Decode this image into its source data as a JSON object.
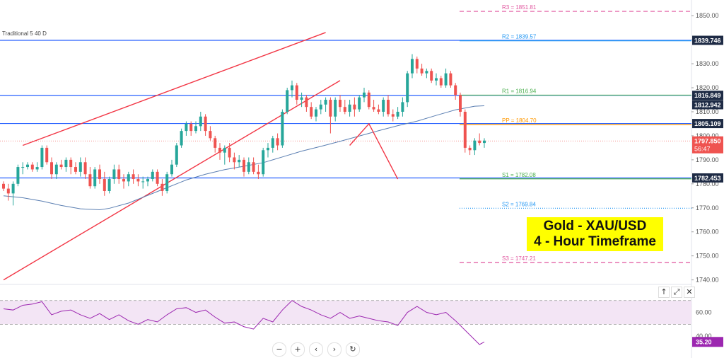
{
  "indicator_label": "Traditional 5 40 D",
  "title_box": {
    "line1": "Gold - XAU/USD",
    "line2": "4 - Hour Timeframe"
  },
  "colors": {
    "up": "#26a69a",
    "down": "#ef5350",
    "hline": "#2962ff",
    "channel": "#f23645",
    "ma": "#5b7fb2",
    "rsi_line": "#9c27b0",
    "rsi_fill": "#f3e5f5",
    "pivot_r": "#e0559e",
    "pivot_r2": "#2196f3",
    "pivot_r1": "#4caf50",
    "pivot_pp": "#ff9800",
    "pivot_s1": "#4caf50",
    "pivot_s2": "#2196f3",
    "pivot_s3": "#e0559e",
    "label_bg": "#1e2b45"
  },
  "pane_buttons": [
    "↑",
    "⤢",
    "✕"
  ],
  "nav_buttons": [
    "−",
    "+",
    "‹",
    "›",
    "↻"
  ],
  "chart_data": {
    "type": "candlestick",
    "price_axis": {
      "ticks": [
        1740.0,
        1750.0,
        1760.0,
        1770.0,
        1780.0,
        1790.0,
        1800.0,
        1810.0,
        1820.0,
        1830.0,
        1840.0,
        1850.0
      ],
      "ylim": [
        1739,
        1853
      ]
    },
    "rsi_axis": {
      "ticks": [
        40.0,
        60.0
      ],
      "ylim": [
        30,
        74
      ]
    },
    "price_labels": [
      {
        "text": "1839.746",
        "value": 1839.746
      },
      {
        "text": "1816.849",
        "value": 1816.849
      },
      {
        "text": "1812.942",
        "value": 1812.942
      },
      {
        "text": "1805.109",
        "value": 1805.109
      },
      {
        "text": "1797.850",
        "value": 1797.85,
        "sub": "56:47",
        "color": "#ef5350"
      },
      {
        "text": "1782.453",
        "value": 1782.453
      }
    ],
    "rsi_value_label": {
      "text": "35.20",
      "value": 35.2
    },
    "horizontal_lines": [
      1839.746,
      1816.849,
      1805.109,
      1782.453
    ],
    "pivots": [
      {
        "label": "R3 = 1851.81",
        "value": 1851.81,
        "style": "dashed",
        "color_key": "pivot_r"
      },
      {
        "label": "R2 = 1839.57",
        "value": 1839.57,
        "style": "solid",
        "color_key": "pivot_r2"
      },
      {
        "label": "R1 = 1816.94",
        "value": 1816.94,
        "style": "solid",
        "color_key": "pivot_r1"
      },
      {
        "label": "PP = 1804.70",
        "value": 1804.7,
        "style": "solid",
        "color_key": "pivot_pp"
      },
      {
        "label": "S1 = 1782.08",
        "value": 1782.08,
        "style": "solid",
        "color_key": "pivot_s1"
      },
      {
        "label": "S2 = 1769.84",
        "value": 1769.84,
        "style": "dotted",
        "color_key": "pivot_s2"
      },
      {
        "label": "S3 = 1747.21",
        "value": 1747.21,
        "style": "dashed",
        "color_key": "pivot_s3"
      }
    ],
    "candles": [
      [
        1780,
        1781,
        1777,
        1778
      ],
      [
        1778,
        1780,
        1773,
        1776
      ],
      [
        1776,
        1781,
        1771,
        1780
      ],
      [
        1780,
        1788,
        1779,
        1787
      ],
      [
        1787,
        1789,
        1784,
        1787
      ],
      [
        1787,
        1789,
        1786,
        1788
      ],
      [
        1788,
        1789,
        1785,
        1786
      ],
      [
        1786,
        1789,
        1785,
        1787
      ],
      [
        1787,
        1796,
        1786,
        1795
      ],
      [
        1795,
        1796,
        1788,
        1789
      ],
      [
        1789,
        1791,
        1782,
        1784
      ],
      [
        1784,
        1789,
        1782,
        1788
      ],
      [
        1788,
        1790,
        1786,
        1787
      ],
      [
        1787,
        1791,
        1785,
        1790
      ],
      [
        1790,
        1791,
        1784,
        1787
      ],
      [
        1787,
        1789,
        1784,
        1785
      ],
      [
        1785,
        1791,
        1783,
        1789
      ],
      [
        1789,
        1791,
        1782,
        1784
      ],
      [
        1784,
        1787,
        1778,
        1779
      ],
      [
        1779,
        1787,
        1778,
        1786
      ],
      [
        1786,
        1788,
        1780,
        1782
      ],
      [
        1782,
        1785,
        1775,
        1777
      ],
      [
        1777,
        1783,
        1776,
        1782
      ],
      [
        1782,
        1788,
        1780,
        1786
      ],
      [
        1786,
        1788,
        1780,
        1782
      ],
      [
        1782,
        1784,
        1778,
        1781
      ],
      [
        1781,
        1785,
        1779,
        1784
      ],
      [
        1784,
        1786,
        1780,
        1782
      ],
      [
        1782,
        1784,
        1779,
        1781
      ],
      [
        1781,
        1783,
        1778,
        1781
      ],
      [
        1781,
        1783,
        1779,
        1782
      ],
      [
        1782,
        1786,
        1781,
        1785
      ],
      [
        1785,
        1786,
        1779,
        1780
      ],
      [
        1780,
        1782,
        1775,
        1777
      ],
      [
        1777,
        1785,
        1776,
        1784
      ],
      [
        1784,
        1790,
        1783,
        1788
      ],
      [
        1788,
        1797,
        1787,
        1796
      ],
      [
        1796,
        1803,
        1795,
        1802
      ],
      [
        1802,
        1806,
        1800,
        1805
      ],
      [
        1805,
        1806,
        1800,
        1802
      ],
      [
        1802,
        1806,
        1801,
        1804
      ],
      [
        1804,
        1810,
        1802,
        1808
      ],
      [
        1808,
        1809,
        1800,
        1802
      ],
      [
        1802,
        1804,
        1798,
        1799
      ],
      [
        1799,
        1800,
        1793,
        1795
      ],
      [
        1795,
        1797,
        1790,
        1793
      ],
      [
        1793,
        1796,
        1788,
        1795
      ],
      [
        1795,
        1797,
        1789,
        1791
      ],
      [
        1791,
        1793,
        1786,
        1789
      ],
      [
        1789,
        1792,
        1787,
        1790
      ],
      [
        1790,
        1791,
        1783,
        1785
      ],
      [
        1785,
        1791,
        1784,
        1789
      ],
      [
        1789,
        1791,
        1784,
        1785
      ],
      [
        1785,
        1788,
        1782,
        1784
      ],
      [
        1784,
        1795,
        1783,
        1794
      ],
      [
        1794,
        1797,
        1791,
        1795
      ],
      [
        1795,
        1800,
        1793,
        1799
      ],
      [
        1799,
        1801,
        1794,
        1796
      ],
      [
        1796,
        1811,
        1795,
        1810
      ],
      [
        1810,
        1820,
        1809,
        1819
      ],
      [
        1819,
        1823,
        1816,
        1821
      ],
      [
        1821,
        1822,
        1813,
        1815
      ],
      [
        1815,
        1818,
        1812,
        1816
      ],
      [
        1816,
        1817,
        1810,
        1812
      ],
      [
        1812,
        1814,
        1807,
        1808
      ],
      [
        1808,
        1812,
        1806,
        1811
      ],
      [
        1811,
        1815,
        1809,
        1813
      ],
      [
        1813,
        1816,
        1810,
        1815
      ],
      [
        1815,
        1816,
        1801,
        1808
      ],
      [
        1808,
        1816,
        1806,
        1815
      ],
      [
        1815,
        1817,
        1810,
        1812
      ],
      [
        1812,
        1815,
        1809,
        1810
      ],
      [
        1810,
        1815,
        1808,
        1813
      ],
      [
        1813,
        1816,
        1808,
        1811
      ],
      [
        1811,
        1817,
        1810,
        1816
      ],
      [
        1816,
        1820,
        1814,
        1818
      ],
      [
        1818,
        1819,
        1811,
        1812
      ],
      [
        1812,
        1815,
        1810,
        1811
      ],
      [
        1811,
        1813,
        1809,
        1810
      ],
      [
        1810,
        1816,
        1808,
        1815
      ],
      [
        1815,
        1817,
        1808,
        1809
      ],
      [
        1809,
        1811,
        1806,
        1808
      ],
      [
        1808,
        1812,
        1807,
        1810
      ],
      [
        1810,
        1816,
        1808,
        1814
      ],
      [
        1814,
        1827,
        1812,
        1826
      ],
      [
        1826,
        1834,
        1824,
        1832
      ],
      [
        1832,
        1833,
        1826,
        1828
      ],
      [
        1828,
        1830,
        1825,
        1826
      ],
      [
        1826,
        1828,
        1824,
        1827
      ],
      [
        1827,
        1828,
        1822,
        1823
      ],
      [
        1823,
        1826,
        1821,
        1824
      ],
      [
        1824,
        1825,
        1820,
        1821
      ],
      [
        1821,
        1828,
        1820,
        1826
      ],
      [
        1826,
        1827,
        1820,
        1821
      ],
      [
        1821,
        1822,
        1815,
        1817
      ],
      [
        1817,
        1818,
        1808,
        1810
      ],
      [
        1810,
        1811,
        1793,
        1795
      ],
      [
        1795,
        1796,
        1792,
        1794
      ],
      [
        1794,
        1799,
        1792,
        1798
      ],
      [
        1798,
        1801,
        1796,
        1797
      ],
      [
        1797,
        1799,
        1795,
        1798
      ]
    ],
    "ma": [
      [
        0,
        1775
      ],
      [
        4,
        1774.2
      ],
      [
        8,
        1772.8
      ],
      [
        12,
        1771
      ],
      [
        16,
        1769.6
      ],
      [
        20,
        1769.2
      ],
      [
        22,
        1769.8
      ],
      [
        26,
        1772
      ],
      [
        30,
        1775.2
      ],
      [
        34,
        1778.4
      ],
      [
        38,
        1781.6
      ],
      [
        42,
        1784
      ],
      [
        46,
        1785.9
      ],
      [
        50,
        1787.3
      ],
      [
        54,
        1788.8
      ],
      [
        58,
        1791.2
      ],
      [
        62,
        1793.6
      ],
      [
        66,
        1795.6
      ],
      [
        70,
        1797.7
      ],
      [
        74,
        1799.9
      ],
      [
        78,
        1802.1
      ],
      [
        82,
        1804.2
      ],
      [
        86,
        1806.1
      ],
      [
        90,
        1808.5
      ],
      [
        94,
        1810.8
      ],
      [
        98,
        1812.3
      ],
      [
        100,
        1812.5
      ]
    ],
    "rsi": [
      [
        0,
        63
      ],
      [
        2,
        62
      ],
      [
        4,
        66
      ],
      [
        6,
        67
      ],
      [
        8,
        69
      ],
      [
        10,
        58
      ],
      [
        12,
        61
      ],
      [
        14,
        62
      ],
      [
        16,
        58
      ],
      [
        18,
        55
      ],
      [
        20,
        59
      ],
      [
        22,
        54
      ],
      [
        24,
        58
      ],
      [
        26,
        53
      ],
      [
        28,
        50
      ],
      [
        30,
        54
      ],
      [
        32,
        52
      ],
      [
        34,
        58
      ],
      [
        36,
        63
      ],
      [
        38,
        64
      ],
      [
        40,
        60
      ],
      [
        42,
        62
      ],
      [
        44,
        56
      ],
      [
        46,
        51
      ],
      [
        48,
        52
      ],
      [
        50,
        48
      ],
      [
        52,
        46
      ],
      [
        54,
        55
      ],
      [
        56,
        52
      ],
      [
        58,
        62
      ],
      [
        60,
        70
      ],
      [
        62,
        65
      ],
      [
        64,
        62
      ],
      [
        66,
        58
      ],
      [
        68,
        55
      ],
      [
        70,
        60
      ],
      [
        72,
        55
      ],
      [
        74,
        57
      ],
      [
        76,
        55
      ],
      [
        78,
        53
      ],
      [
        80,
        52
      ],
      [
        82,
        49
      ],
      [
        84,
        60
      ],
      [
        86,
        65
      ],
      [
        88,
        60
      ],
      [
        90,
        58
      ],
      [
        92,
        60
      ],
      [
        94,
        53
      ],
      [
        96,
        45
      ],
      [
        98,
        37
      ],
      [
        99,
        33
      ],
      [
        100,
        35.2
      ]
    ],
    "rsi_band": [
      50,
      70
    ],
    "channel": {
      "upper": [
        [
          4,
          1796
        ],
        [
          67,
          1843
        ]
      ],
      "lower": [
        [
          0,
          1740
        ],
        [
          70,
          1823
        ]
      ]
    },
    "projection": [
      [
        72,
        1796
      ],
      [
        76,
        1805
      ],
      [
        82,
        1782
      ]
    ]
  }
}
